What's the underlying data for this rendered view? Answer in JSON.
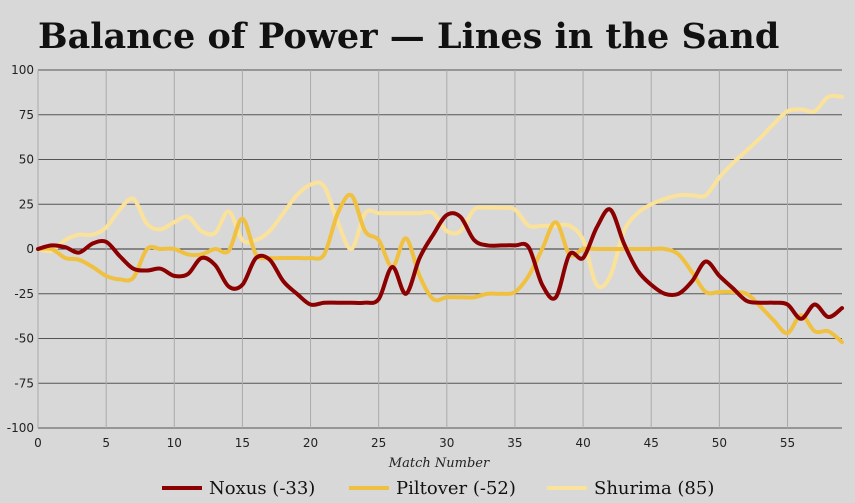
{
  "chart_data": {
    "type": "line",
    "title": "Balance of Power — Lines in the Sand",
    "xlabel": "Match Number",
    "ylabel": "",
    "xlim": [
      0,
      59
    ],
    "ylim": [
      -100,
      100
    ],
    "xticks": [
      0,
      5,
      10,
      15,
      20,
      25,
      30,
      35,
      40,
      45,
      50,
      55
    ],
    "yticks": [
      100,
      75,
      50,
      25,
      0,
      -25,
      -50,
      -75,
      -100
    ],
    "grid": true,
    "legend_position": "bottom",
    "x": [
      0,
      1,
      2,
      3,
      4,
      5,
      6,
      7,
      8,
      9,
      10,
      11,
      12,
      13,
      14,
      15,
      16,
      17,
      18,
      19,
      20,
      21,
      22,
      23,
      24,
      25,
      26,
      27,
      28,
      29,
      30,
      31,
      32,
      33,
      34,
      35,
      36,
      37,
      38,
      39,
      40,
      41,
      42,
      43,
      44,
      45,
      46,
      47,
      48,
      49,
      50,
      51,
      52,
      53,
      54,
      55,
      56,
      57,
      58,
      59
    ],
    "series": [
      {
        "name": "Noxus (-33)",
        "color": "#8b0000",
        "values": [
          0,
          2,
          1,
          -2,
          3,
          4,
          -4,
          -11,
          -12,
          -11,
          -15,
          -14,
          -5,
          -9,
          -21,
          -20,
          -5,
          -6,
          -18,
          -25,
          -31,
          -30,
          -30,
          -30,
          -30,
          -28,
          -10,
          -25,
          -5,
          8,
          19,
          18,
          5,
          2,
          2,
          2,
          1,
          -20,
          -27,
          -3,
          -5,
          12,
          22,
          3,
          -12,
          -20,
          -25,
          -25,
          -18,
          -7,
          -15,
          -22,
          -29,
          -30,
          -30,
          -31,
          -39,
          -31,
          -38,
          -33
        ]
      },
      {
        "name": "Piltover (-52)",
        "color": "#f0c040",
        "values": [
          0,
          0,
          -5,
          -6,
          -10,
          -15,
          -17,
          -16,
          0,
          0,
          0,
          -3,
          -3,
          0,
          -1,
          17,
          -3,
          -5,
          -5,
          -5,
          -5,
          -3,
          20,
          30,
          10,
          5,
          -10,
          6,
          -15,
          -28,
          -27,
          -27,
          -27,
          -25,
          -25,
          -24,
          -15,
          0,
          15,
          -3,
          0,
          0,
          0,
          0,
          0,
          0,
          0,
          -3,
          -13,
          -24,
          -24,
          -24,
          -25,
          -32,
          -40,
          -47,
          -37,
          -46,
          -46,
          -52
        ]
      },
      {
        "name": "Shurima (85)",
        "color": "#fbe29a",
        "values": [
          0,
          -1,
          5,
          8,
          8,
          12,
          22,
          28,
          14,
          11,
          15,
          18,
          10,
          9,
          21,
          5,
          5,
          10,
          20,
          30,
          36,
          35,
          15,
          0,
          20,
          20,
          20,
          20,
          20,
          20,
          10,
          10,
          22,
          23,
          23,
          22,
          13,
          13,
          13,
          13,
          5,
          -20,
          -15,
          10,
          20,
          25,
          28,
          30,
          30,
          30,
          40,
          48,
          55,
          62,
          70,
          77,
          78,
          77,
          85,
          85
        ]
      }
    ]
  }
}
